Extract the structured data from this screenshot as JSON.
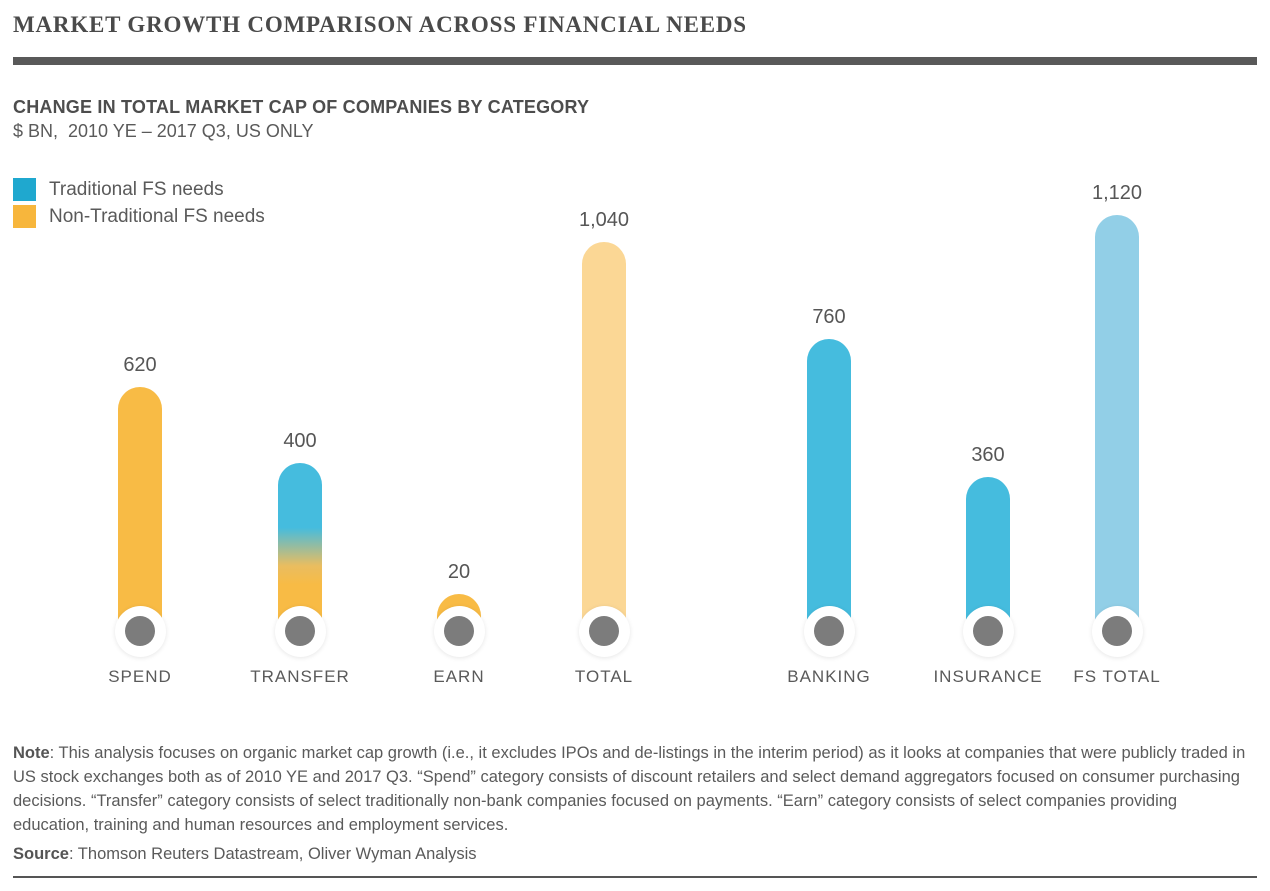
{
  "header": {
    "title": "MARKET GROWTH COMPARISON ACROSS FINANCIAL NEEDS"
  },
  "chart_header": {
    "title": "CHANGE IN TOTAL MARKET CAP OF COMPANIES BY CATEGORY",
    "subtitle": "$ BN,  2010 YE – 2017 Q3, US ONLY"
  },
  "legend": {
    "items": [
      {
        "label": "Traditional FS needs",
        "color": "#1FA8CF"
      },
      {
        "label": "Non-Traditional FS needs",
        "color": "#F7B63C"
      }
    ]
  },
  "chart_data": {
    "type": "bar",
    "title": "CHANGE IN TOTAL MARKET CAP OF COMPANIES BY CATEGORY",
    "unit": "$ BN",
    "period": "2010 YE – 2017 Q3, US ONLY",
    "region": "US ONLY",
    "categories": [
      "SPEND",
      "TRANSFER",
      "EARN",
      "TOTAL",
      "BANKING",
      "INSURANCE",
      "FS TOTAL"
    ],
    "values": [
      620,
      400,
      20,
      1040,
      760,
      360,
      1120
    ],
    "value_labels": [
      "620",
      "400",
      "20",
      "1,040",
      "760",
      "360",
      "1,120"
    ],
    "bars": [
      {
        "category": "SPEND",
        "value": 620,
        "label": "620",
        "fill": "non_traditional"
      },
      {
        "category": "TRANSFER",
        "value": 400,
        "label": "400",
        "fill": "mixed"
      },
      {
        "category": "EARN",
        "value": 20,
        "label": "20",
        "fill": "non_traditional"
      },
      {
        "category": "TOTAL",
        "value": 1040,
        "label": "1,040",
        "fill": "non_traditional_total"
      },
      {
        "category": "BANKING",
        "value": 760,
        "label": "760",
        "fill": "traditional"
      },
      {
        "category": "INSURANCE",
        "value": 360,
        "label": "360",
        "fill": "traditional"
      },
      {
        "category": "FS TOTAL",
        "value": 1120,
        "label": "1,120",
        "fill": "traditional_total"
      }
    ],
    "colors": {
      "traditional": "#45BCDE",
      "traditional_total": "#92CFE7",
      "non_traditional": "#F8BB45",
      "non_traditional_total": "#FBD795",
      "base_dot": "#7C7C7C",
      "base_circle": "#FFFFFF"
    },
    "legend_position": "top-left",
    "grid": false
  },
  "note": {
    "label": "Note",
    "text": ": This analysis focuses on organic market cap growth (i.e., it excludes IPOs and de-listings in the interim period) as it looks at companies that were publicly traded in US stock exchanges both as of 2010 YE and 2017 Q3. “Spend” category consists of discount retailers and select demand aggregators focused on consumer purchasing decisions. “Transfer” category consists of select traditionally non-bank companies focused on payments. “Earn” category consists of select companies providing education, training and human resources and employment services."
  },
  "source": {
    "label": "Source",
    "text": ": Thomson Reuters Datastream, Oliver Wyman Analysis"
  }
}
